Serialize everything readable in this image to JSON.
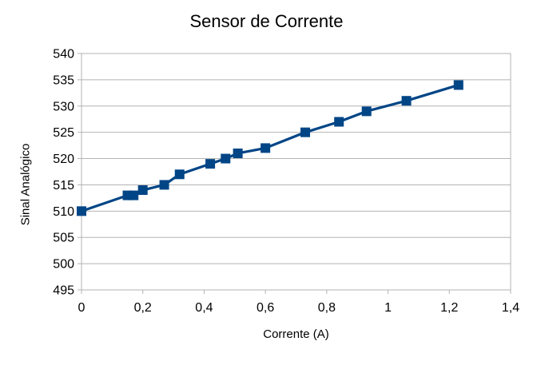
{
  "chart_data": {
    "type": "line",
    "title": "Sensor de Corrente",
    "xlabel": "Corrente (A)",
    "ylabel": "Sinal Analógico",
    "xlim": [
      0,
      1.4
    ],
    "ylim": [
      495,
      540
    ],
    "x_ticks": [
      "0",
      "0,2",
      "0,4",
      "0,6",
      "0,8",
      "1",
      "1,2",
      "1,4"
    ],
    "y_ticks": [
      "495",
      "500",
      "505",
      "510",
      "515",
      "520",
      "525",
      "530",
      "535",
      "540"
    ],
    "grid": "horizontal",
    "legend": "none",
    "series": [
      {
        "color": "#004586",
        "marker": "square",
        "x": [
          0,
          0.15,
          0.17,
          0.2,
          0.27,
          0.32,
          0.42,
          0.47,
          0.51,
          0.6,
          0.73,
          0.84,
          0.93,
          1.06,
          1.23
        ],
        "y": [
          510,
          513,
          513,
          514,
          515,
          517,
          519,
          520,
          521,
          522,
          525,
          527,
          529,
          531,
          534
        ]
      }
    ]
  }
}
